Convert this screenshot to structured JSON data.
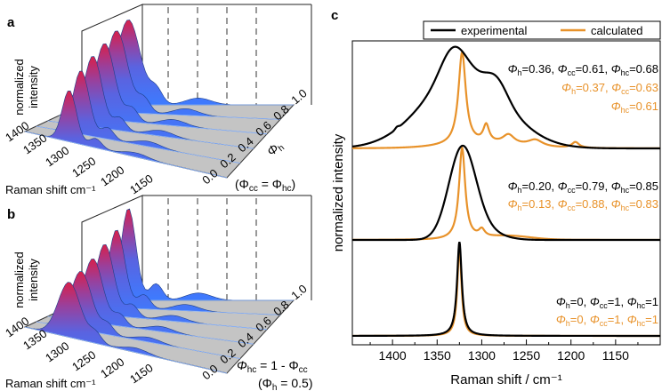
{
  "panels": {
    "a": {
      "tag": "a",
      "z_label_line1": "normalized",
      "z_label_line2": "intensity",
      "x_label": "Raman shift cm⁻¹",
      "x_ticks": [
        "1400",
        "1350",
        "1300",
        "1250",
        "1200",
        "1150"
      ],
      "y_ticks": [
        "0.0",
        "0.2",
        "0.4",
        "0.6",
        "0.8",
        "1.0"
      ],
      "y_label_main": "Φ",
      "y_label_sub": "h",
      "cond_open": "(Φ",
      "cond_cc": "cc",
      "cond_eq": " = Φ",
      "cond_hc": "hc",
      "cond_close": ")"
    },
    "b": {
      "tag": "b",
      "z_label_line1": "normalized",
      "z_label_line2": "intensity",
      "x_label": "Raman shift cm⁻¹",
      "x_ticks": [
        "1400",
        "1350",
        "1300",
        "1250",
        "1200",
        "1150"
      ],
      "y_ticks": [
        "0.0",
        "0.2",
        "0.4",
        "0.6",
        "0.8",
        "1.0"
      ],
      "rel_main": "Φ",
      "rel_hc": "hc",
      "rel_mid": " = 1 - Φ",
      "rel_cc": "cc",
      "cond_open": "(Φ",
      "cond_h": "h",
      "cond_close": " = 0.5)"
    },
    "c": {
      "tag": "c"
    }
  },
  "chart_data": {
    "type": "line",
    "xlabel": "Raman shift / cm⁻¹",
    "ylabel": "normalized intensity",
    "xlim": [
      1445,
      1100
    ],
    "x_ticks": [
      1400,
      1350,
      1300,
      1250,
      1200,
      1150
    ],
    "legend": {
      "position": "top-right",
      "experimental": "experimental",
      "calculated": "calculated"
    },
    "colors": {
      "experimental": "#000000",
      "calculated": "#e8922a"
    },
    "series": [
      {
        "name": "top",
        "experimental": {
          "peak": 1320,
          "width": 46,
          "shoulder": "1280"
        },
        "calculated": {
          "peak": 1322,
          "width": 10,
          "extra_peaks": [
            1295,
            1270,
            1195
          ]
        },
        "exp_text": {
          "a": "=0.36, ",
          "b": "=0.61, ",
          "c": "=0.68"
        },
        "calc_text": {
          "a": "=0.37, ",
          "b": "=0.63",
          "c": "=0.61"
        }
      },
      {
        "name": "middle",
        "experimental": {
          "peak": 1322,
          "width": 28
        },
        "calculated": {
          "peak": 1322,
          "width": 9,
          "extra_peaks": [
            1300
          ]
        },
        "exp_text": {
          "a": "=0.20, ",
          "b": "=0.79, ",
          "c": "=0.85"
        },
        "calc_text": {
          "a": "=0.13, ",
          "b": "=0.88, ",
          "c": "=0.83"
        }
      },
      {
        "name": "bottom",
        "experimental": {
          "peak": 1325,
          "width": 6
        },
        "calculated": {
          "peak": 1325,
          "width": 5
        },
        "exp_text": {
          "a": "=0, ",
          "b": "=1, ",
          "c": "=1"
        },
        "calc_text": {
          "a": "=0, ",
          "b": "=1, ",
          "c": "=1"
        }
      }
    ],
    "sym_phi": "Φ",
    "sub_h": "h",
    "sub_cc": "cc",
    "sub_hc": "hc"
  }
}
